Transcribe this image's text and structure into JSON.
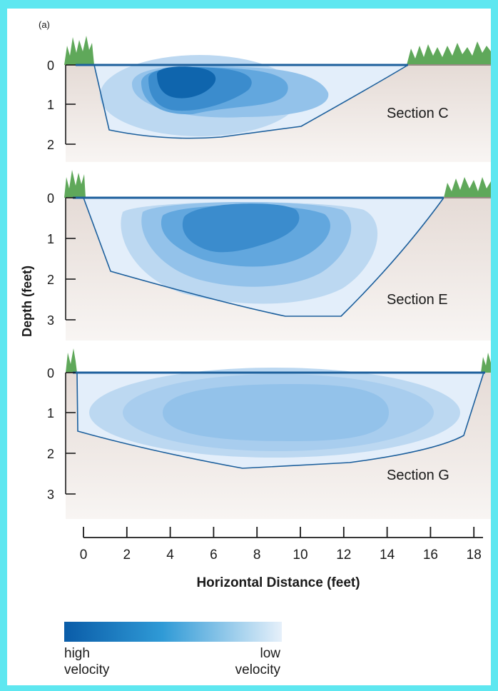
{
  "panel_label": "(a)",
  "ylabel": "Depth (feet)",
  "xlabel": "Horizontal Distance (feet)",
  "x_ticks": [
    "0",
    "2",
    "4",
    "6",
    "8",
    "10",
    "12",
    "14",
    "16",
    "18"
  ],
  "sections": [
    {
      "label": "Section C",
      "depth_ticks": [
        "0",
        "1",
        "2"
      ]
    },
    {
      "label": "Section E",
      "depth_ticks": [
        "0",
        "1",
        "2",
        "3"
      ]
    },
    {
      "label": "Section G",
      "depth_ticks": [
        "0",
        "1",
        "2",
        "3"
      ]
    }
  ],
  "legend": {
    "high_line1": "high",
    "high_line2": "velocity",
    "low_line1": "low",
    "low_line2": "velocity",
    "colors": [
      "#0a5ca8",
      "#2f9ad6",
      "#e6f0fa"
    ]
  },
  "colors": {
    "background_border": "#5ee7f0",
    "ground": "#ece4df",
    "grass": "#5fa85a",
    "water_surface": "#1c5f9c",
    "velocity_levels": [
      "#e3eefa",
      "#bcd8f1",
      "#93c2ea",
      "#62a7de",
      "#3b8ccd",
      "#0f65ad"
    ]
  }
}
